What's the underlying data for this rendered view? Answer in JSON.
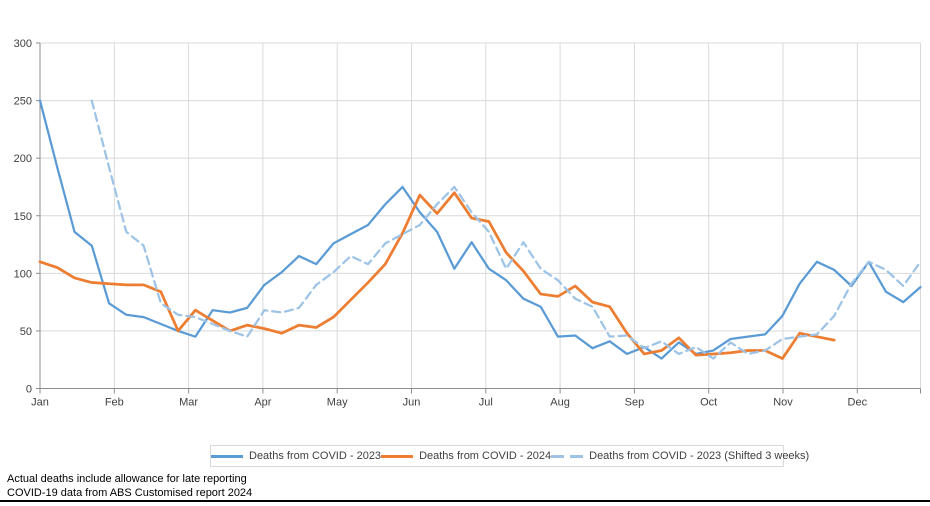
{
  "chart_data": {
    "type": "line",
    "title": "",
    "x_axis": {
      "unit": "week",
      "weeks_total": 52,
      "months": [
        "Jan",
        "Feb",
        "Mar",
        "Apr",
        "May",
        "Jun",
        "Jul",
        "Aug",
        "Sep",
        "Oct",
        "Nov",
        "Dec"
      ]
    },
    "y_axis": {
      "min": 0,
      "max": 300,
      "ticks": [
        0,
        50,
        100,
        150,
        200,
        250,
        300
      ]
    },
    "grid": true,
    "legend_position": "bottom",
    "series": [
      {
        "name": "Deaths from COVID - 2023",
        "color": "#5B9BD5",
        "style": "solid",
        "start_week": 1,
        "values": [
          250,
          192,
          136,
          124,
          74,
          64,
          62,
          56,
          50,
          45,
          68,
          66,
          70,
          90,
          101,
          115,
          108,
          126,
          134,
          142,
          160,
          175,
          153,
          136,
          104,
          127,
          104,
          94,
          78,
          71,
          45,
          46,
          35,
          41,
          30,
          36,
          26,
          40,
          30,
          33,
          43,
          45,
          47,
          63,
          91,
          110,
          103,
          89,
          110,
          84,
          75,
          88
        ]
      },
      {
        "name": "Deaths from COVID - 2024",
        "color": "#ED7D31",
        "style": "solid",
        "start_week": 1,
        "values": [
          110,
          105,
          96,
          92,
          91,
          90,
          90,
          84,
          50,
          68,
          59,
          50,
          55,
          52,
          48,
          55,
          53,
          62,
          77,
          92,
          108,
          135,
          168,
          152,
          170,
          148,
          145,
          118,
          102,
          82,
          80,
          89,
          75,
          71,
          48,
          30,
          33,
          44,
          29,
          30,
          31,
          33,
          33,
          26,
          48,
          45,
          42
        ]
      },
      {
        "name": "Deaths from COVID - 2023 (Shifted 3 weeks)",
        "color": "#9DC3E6",
        "style": "dashed",
        "start_week": 4,
        "values": [
          250,
          192,
          136,
          124,
          74,
          64,
          62,
          56,
          50,
          45,
          68,
          66,
          70,
          90,
          101,
          115,
          108,
          126,
          134,
          142,
          160,
          175,
          153,
          136,
          104,
          127,
          104,
          94,
          78,
          71,
          45,
          46,
          35,
          41,
          30,
          36,
          26,
          40,
          30,
          33,
          43,
          45,
          47,
          63,
          91,
          110,
          103,
          89,
          110
        ]
      }
    ]
  },
  "footer": {
    "line1": "Actual deaths include allowance for late reporting",
    "line2": "COVID-19 data from ABS Customised report 2024"
  },
  "style": {
    "grid_color": "#d9d9d9",
    "axis_color": "#8c8c8c",
    "label_color": "#404040"
  }
}
